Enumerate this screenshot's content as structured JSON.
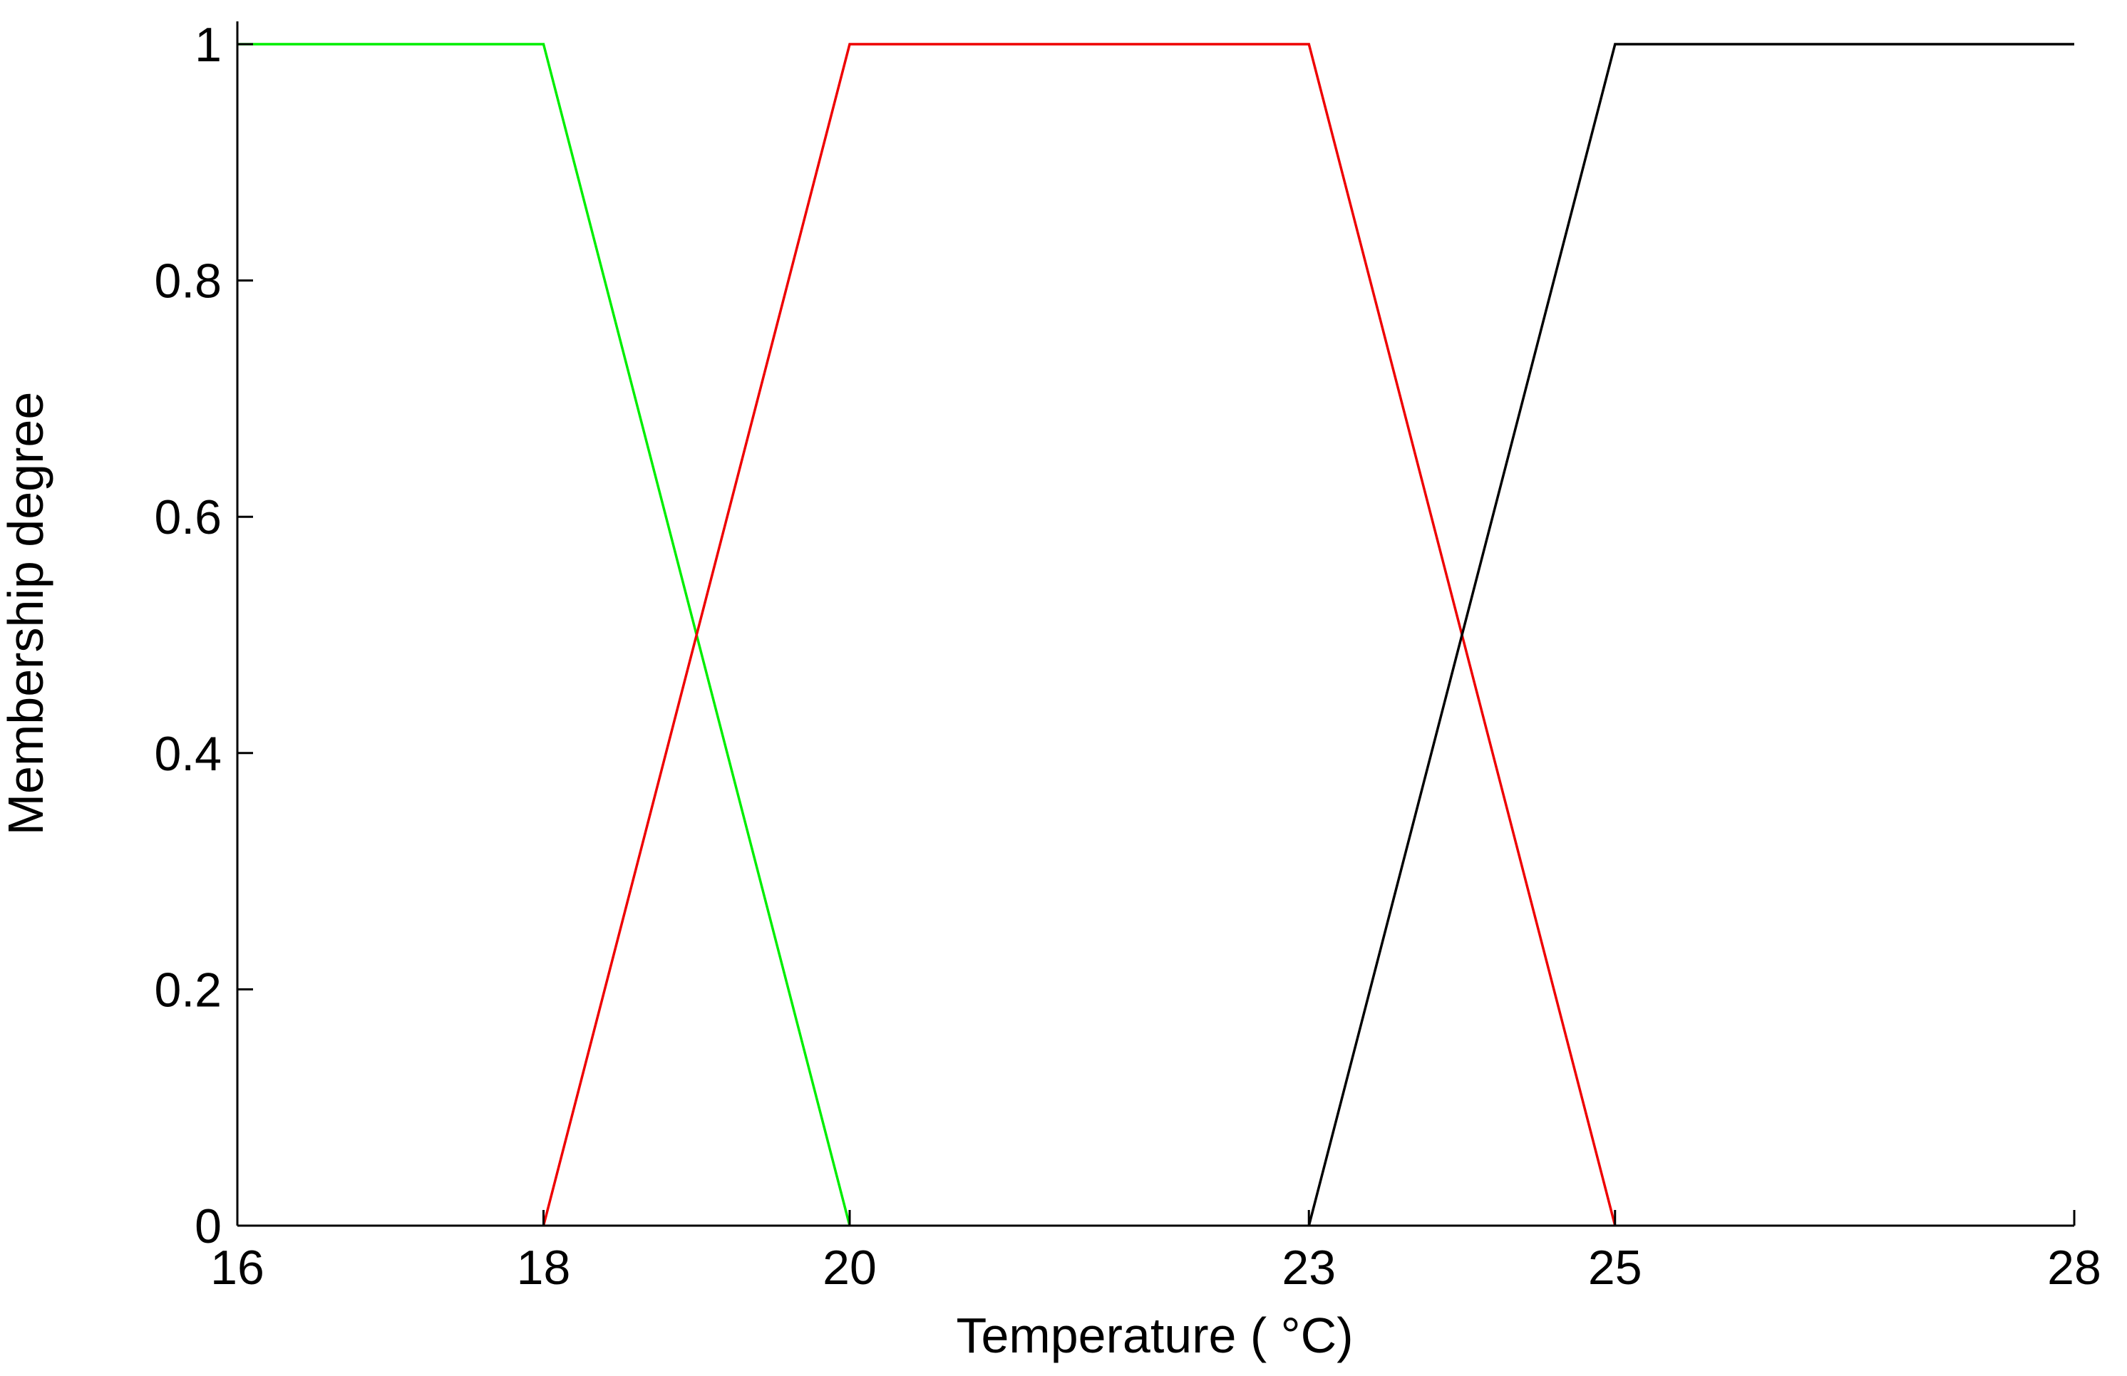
{
  "chart_data": {
    "type": "line",
    "title": "",
    "xlabel": "Temperature ( °C)",
    "ylabel": "Membership degree",
    "xlim": [
      16,
      28
    ],
    "ylim": [
      0,
      1
    ],
    "x_ticks": [
      16,
      18,
      20,
      23,
      25,
      28
    ],
    "x_tick_labels": [
      "16",
      "18",
      "20",
      "23",
      "25",
      "28"
    ],
    "y_ticks": [
      0,
      0.2,
      0.4,
      0.6,
      0.8,
      1
    ],
    "y_tick_labels": [
      "0",
      "0.2",
      "0.4",
      "0.6",
      "0.8",
      "1"
    ],
    "grid": false,
    "legend": "none",
    "series": [
      {
        "color": "#00ee00",
        "x": [
          16,
          18,
          20
        ],
        "y": [
          1,
          1,
          0
        ]
      },
      {
        "color": "#ee0000",
        "x": [
          18,
          20,
          23,
          25
        ],
        "y": [
          0,
          1,
          1,
          0
        ]
      },
      {
        "color": "#000000",
        "x": [
          23,
          25,
          28
        ],
        "y": [
          0,
          1,
          1
        ]
      }
    ]
  }
}
